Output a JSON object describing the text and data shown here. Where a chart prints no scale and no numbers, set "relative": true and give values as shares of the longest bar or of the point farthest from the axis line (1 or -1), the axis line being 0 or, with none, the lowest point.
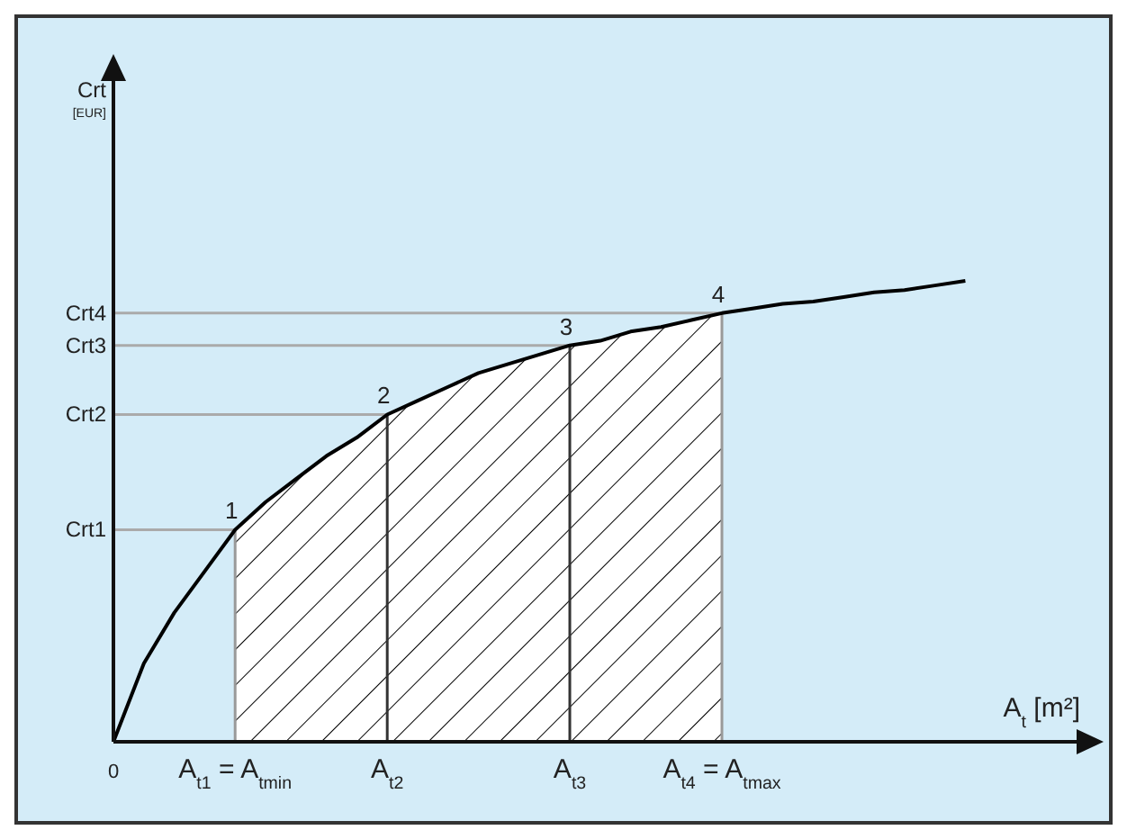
{
  "chart_data": {
    "type": "line",
    "relative": true,
    "xlabel": "A$_{t}$ [m²]",
    "categories": [
      "0",
      null,
      null,
      null,
      "A$_{t1}$ = A$_{tmin}$",
      null,
      null,
      null,
      null,
      "A$_{t2}$",
      null,
      null,
      null,
      null,
      null,
      "A$_{t3}$",
      null,
      null,
      null,
      null,
      "A$_{t4}$ = A$_{tmax}$",
      null,
      null,
      null,
      null,
      null,
      null,
      null,
      null
    ],
    "grid": false,
    "marker": "none",
    "line_style": "solid",
    "series": [
      {
        "type": "area",
        "color": "#000000",
        "values": [
          null,
          null,
          null,
          null,
          0.46,
          0.52,
          0.57,
          0.62,
          0.66,
          0.71,
          0.74,
          0.77,
          0.8,
          0.82,
          0.84,
          0.86,
          0.87,
          0.89,
          0.9,
          0.915,
          0.93,
          null,
          null,
          null,
          null,
          null,
          null,
          null,
          null
        ]
      },
      {
        "color": "#000000",
        "values": [
          0,
          0.17,
          0.28,
          0.37,
          0.46,
          0.52,
          0.57,
          0.62,
          0.66,
          0.71,
          0.74,
          0.77,
          0.8,
          0.82,
          0.84,
          0.86,
          0.87,
          0.89,
          0.9,
          0.915,
          0.93,
          0.94,
          0.95,
          0.955,
          0.965,
          0.975,
          0.98,
          0.99,
          1
        ]
      }
    ],
    "ref_lines": [
      {
        "axis": "x",
        "value": "A$_{t1}$ = A$_{tmin}$",
        "color": "#999999"
      },
      {
        "axis": "x",
        "value": "A$_{t2}$",
        "color": "#333333"
      },
      {
        "axis": "x",
        "value": "A$_{t3}$",
        "color": "#333333"
      },
      {
        "axis": "x",
        "value": "A$_{t4}$ = A$_{tmax}$",
        "color": "#999999"
      },
      {
        "axis": "y",
        "value": 0.46,
        "label": "Crt1",
        "color": "#aaaaaa"
      },
      {
        "axis": "y",
        "value": 0.71,
        "label": "Crt2",
        "color": "#aaaaaa"
      },
      {
        "axis": "y",
        "value": 0.86,
        "label": "Crt3",
        "color": "#aaaaaa"
      },
      {
        "axis": "y",
        "value": 0.93,
        "label": "Crt4",
        "color": "#aaaaaa"
      }
    ],
    "annotations": [
      "Crt [EUR]",
      {
        "text": "1",
        "x": "A$_{t1}$ = A$_{tmin}$",
        "y": 0.46
      },
      {
        "text": "2",
        "x": "A$_{t2}$",
        "y": 0.71
      },
      {
        "text": "3",
        "x": "A$_{t3}$",
        "y": 0.86
      },
      {
        "text": "4",
        "x": "A$_{t4}$ = A$_{tmax}$",
        "y": 0.93
      }
    ]
  }
}
